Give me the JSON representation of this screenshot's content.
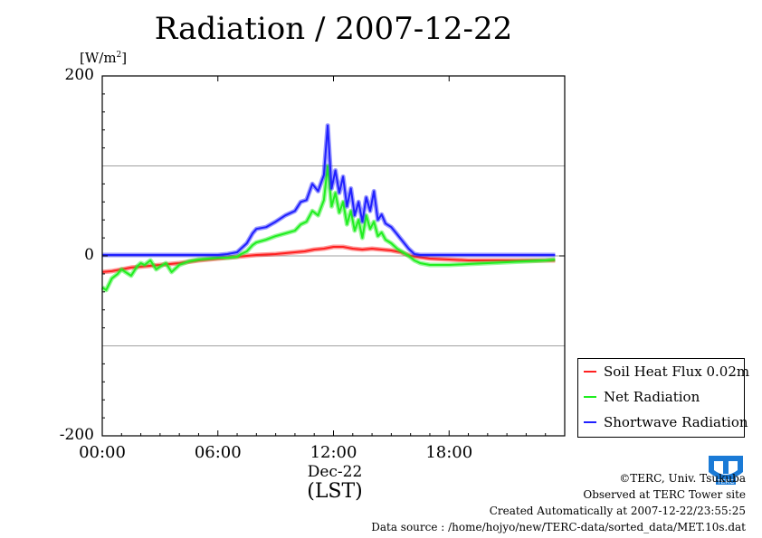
{
  "title": "Radiation / 2007-12-22",
  "unit": {
    "prefix": "[W/m",
    "sup": "2",
    "suffix": "]"
  },
  "date_label": "Dec-22",
  "tz_label": "(LST)",
  "credits": {
    "line1": "©TERC, Univ. Tsukuba",
    "line2": "Observed at TERC Tower site",
    "line3": "Created Automatically at 2007-12-22/23:55:25",
    "line4": "Data source : /home/hojyo/new/TERC-data/sorted_data/MET.10s.dat"
  },
  "logo": {
    "text": "TERC",
    "icon": "terc-logo-icon",
    "color": "#1a7ad6"
  },
  "chart_data": {
    "type": "line",
    "title": "Radiation / 2007-12-22",
    "xlabel": "Dec-22",
    "xlabel_sub": "(LST)",
    "ylabel": "[W/m2]",
    "xlim": [
      0,
      24
    ],
    "ylim": [
      -200,
      200
    ],
    "xticks": [
      0,
      6,
      12,
      18
    ],
    "xtick_labels": [
      "00:00",
      "06:00",
      "12:00",
      "18:00"
    ],
    "yticks": [
      -200,
      0,
      200
    ],
    "ytick_labels": [
      "-200",
      "0",
      "200"
    ],
    "grid": "horizontal at -100, 0, 100",
    "legend_position": "bottom-right outside",
    "series": [
      {
        "name": "Soil Heat Flux 0.02m",
        "color": "#ff2020",
        "x": [
          0,
          0.5,
          1,
          1.5,
          2,
          3,
          4,
          5,
          6,
          7,
          8,
          9,
          10,
          10.5,
          11,
          11.5,
          12,
          12.5,
          13,
          13.5,
          14,
          14.5,
          15,
          15.5,
          16,
          17,
          18,
          19,
          20,
          21,
          22,
          23,
          23.5
        ],
        "y": [
          -18,
          -17,
          -15,
          -13,
          -12,
          -10,
          -8,
          -5,
          -3,
          -1,
          1,
          2,
          4,
          5,
          7,
          8,
          10,
          10,
          8,
          7,
          8,
          7,
          6,
          4,
          0,
          -3,
          -4,
          -5,
          -5,
          -5,
          -5,
          -5,
          -5
        ]
      },
      {
        "name": "Net Radiation",
        "color": "#20ee20",
        "x": [
          0,
          0.2,
          0.5,
          0.8,
          1,
          1.2,
          1.5,
          1.8,
          2,
          2.2,
          2.5,
          2.8,
          3,
          3.3,
          3.6,
          4,
          4.5,
          5,
          5.5,
          6,
          6.5,
          7,
          7.2,
          7.5,
          7.8,
          8,
          8.5,
          9,
          9.5,
          10,
          10.3,
          10.6,
          10.9,
          11.2,
          11.5,
          11.7,
          11.9,
          12.1,
          12.3,
          12.5,
          12.7,
          12.9,
          13.1,
          13.3,
          13.5,
          13.7,
          13.9,
          14.1,
          14.3,
          14.5,
          14.7,
          15,
          15.3,
          15.6,
          15.9,
          16.2,
          16.5,
          17,
          18,
          19,
          20,
          21,
          22,
          23,
          23.5
        ],
        "y": [
          -35,
          -38,
          -25,
          -20,
          -15,
          -18,
          -22,
          -12,
          -8,
          -10,
          -5,
          -15,
          -12,
          -8,
          -18,
          -10,
          -6,
          -4,
          -3,
          -2,
          -2,
          -1,
          2,
          5,
          12,
          15,
          18,
          22,
          25,
          28,
          35,
          38,
          50,
          45,
          62,
          100,
          55,
          70,
          48,
          60,
          35,
          50,
          28,
          40,
          20,
          45,
          30,
          38,
          22,
          26,
          18,
          14,
          8,
          4,
          0,
          -5,
          -8,
          -10,
          -10,
          -9,
          -8,
          -7,
          -6,
          -5,
          -4
        ]
      },
      {
        "name": "Shortwave Radiation",
        "color": "#2020ff",
        "x": [
          0,
          1,
          2,
          3,
          4,
          5,
          6,
          6.5,
          7,
          7.2,
          7.5,
          7.8,
          8,
          8.5,
          9,
          9.5,
          10,
          10.3,
          10.6,
          10.9,
          11.2,
          11.5,
          11.7,
          11.9,
          12.1,
          12.3,
          12.5,
          12.7,
          12.9,
          13.1,
          13.3,
          13.5,
          13.7,
          13.9,
          14.1,
          14.3,
          14.5,
          14.7,
          15,
          15.3,
          15.6,
          15.9,
          16.2,
          16.5,
          17,
          18,
          19,
          20,
          21,
          22,
          23,
          23.5
        ],
        "y": [
          1,
          1,
          1,
          1,
          1,
          1,
          1,
          2,
          4,
          8,
          14,
          25,
          30,
          32,
          38,
          45,
          50,
          60,
          62,
          80,
          72,
          90,
          145,
          75,
          95,
          70,
          88,
          55,
          75,
          45,
          60,
          38,
          65,
          50,
          72,
          40,
          46,
          36,
          32,
          24,
          16,
          8,
          2,
          1,
          1,
          1,
          1,
          1,
          1,
          1,
          1,
          1
        ]
      }
    ]
  }
}
